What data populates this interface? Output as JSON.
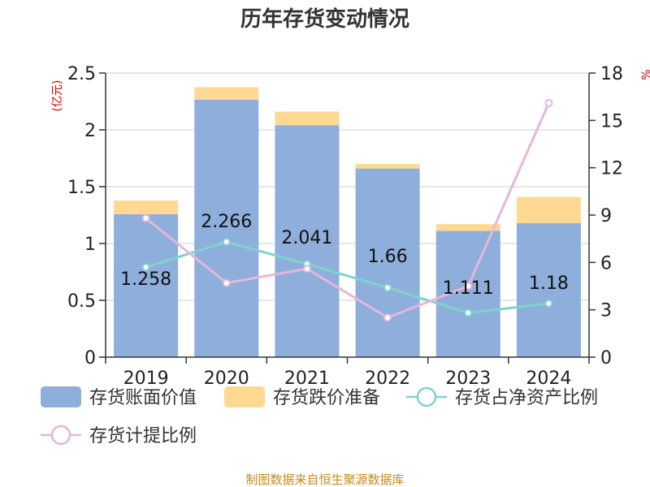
{
  "chart_data": {
    "type": "bar",
    "title": "历年存货变动情况",
    "categories": [
      "2019",
      "2020",
      "2021",
      "2022",
      "2023",
      "2024"
    ],
    "y_left": {
      "unit_label": "(亿元)",
      "ylim": [
        0,
        2.5
      ],
      "ticks": [
        "0",
        "0.5",
        "1",
        "1.5",
        "2",
        "2.5"
      ]
    },
    "y_right": {
      "unit_label": "%",
      "ylim": [
        0,
        18
      ],
      "ticks": [
        "0",
        "3",
        "6",
        "9",
        "12",
        "15",
        "18"
      ]
    },
    "series": [
      {
        "name": "存货账面价值",
        "type": "bar",
        "axis": "left",
        "color": "#8eaedb",
        "values": [
          1.258,
          2.266,
          2.041,
          1.66,
          1.111,
          1.18
        ],
        "labels": [
          "1.258",
          "2.266",
          "2.041",
          "1.66",
          "1.111",
          "1.18"
        ]
      },
      {
        "name": "存货跌价准备",
        "type": "bar",
        "axis": "left",
        "color": "#ffd991",
        "values": [
          0.12,
          0.11,
          0.12,
          0.04,
          0.06,
          0.23
        ]
      },
      {
        "name": "存货占净资产比例",
        "type": "line",
        "axis": "right",
        "color": "#7fd3cc",
        "values": [
          5.7,
          7.3,
          5.9,
          4.4,
          2.8,
          3.4
        ]
      },
      {
        "name": "存货计提比例",
        "type": "line",
        "axis": "right",
        "color": "#e7b6da",
        "values": [
          8.8,
          4.7,
          5.6,
          2.5,
          4.5,
          16.1
        ]
      }
    ],
    "grid": true,
    "legend": "bottom"
  },
  "source": "制图数据来自恒生聚源数据库"
}
